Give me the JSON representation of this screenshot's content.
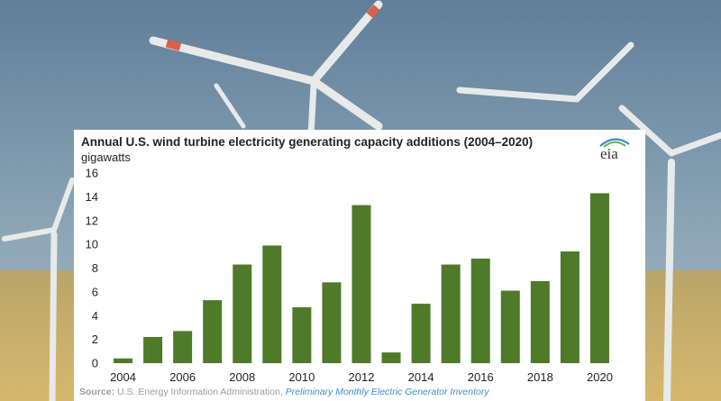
{
  "chart_data": {
    "type": "bar",
    "title": "Annual U.S. wind turbine electricity generating capacity additions (2004–2020)",
    "ylabel": "gigawatts",
    "categories": [
      "2004",
      "2005",
      "2006",
      "2007",
      "2008",
      "2009",
      "2010",
      "2011",
      "2012",
      "2013",
      "2014",
      "2015",
      "2016",
      "2017",
      "2018",
      "2019",
      "2020"
    ],
    "values": [
      0.4,
      2.2,
      2.7,
      5.3,
      8.3,
      9.9,
      4.7,
      6.8,
      13.3,
      0.9,
      5.0,
      8.3,
      8.8,
      6.1,
      6.9,
      9.4,
      14.3
    ],
    "x_tick_labels": [
      "2004",
      "2006",
      "2008",
      "2010",
      "2012",
      "2014",
      "2016",
      "2018",
      "2020"
    ],
    "y_ticks": [
      "0",
      "2",
      "4",
      "6",
      "8",
      "10",
      "12",
      "14",
      "16"
    ],
    "ylim": [
      0,
      16
    ],
    "grid": false,
    "bar_color": "#4e7a2a"
  },
  "logo_text": "eia",
  "source": {
    "label": "Source:",
    "text": " U.S. Energy Information Administration, ",
    "link": "Preliminary Monthly Electric Generator Inventory"
  }
}
